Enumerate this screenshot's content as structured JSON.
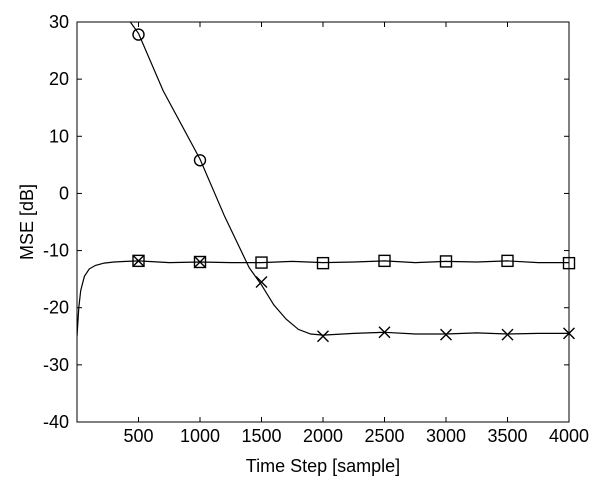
{
  "chart_data": {
    "type": "line",
    "title": "",
    "xlabel": "Time Step [sample]",
    "ylabel": "MSE [dB]",
    "xlim": [
      0,
      4000
    ],
    "ylim": [
      -40,
      30
    ],
    "xticks": [
      500,
      1000,
      1500,
      2000,
      2500,
      3000,
      3500,
      4000
    ],
    "yticks": [
      -40,
      -30,
      -20,
      -10,
      0,
      10,
      20,
      30
    ],
    "grid": false,
    "legend": "none",
    "series": [
      {
        "marker": "circle",
        "line_x": [
          400,
          500,
          700,
          1000,
          1200,
          1400,
          1500,
          1600,
          1700,
          1800,
          1900,
          2000,
          2250,
          2500,
          2750,
          3000,
          3250,
          3500,
          3750,
          4000
        ],
        "line_y": [
          31,
          28,
          18,
          6,
          -4,
          -13,
          -16,
          -19.5,
          -22,
          -23.8,
          -24.6,
          -24.8,
          -24.5,
          -24.3,
          -24.6,
          -24.6,
          -24.4,
          -24.6,
          -24.5,
          -24.5
        ],
        "marker_x": [
          500,
          1000
        ],
        "marker_y": [
          27.8,
          5.8
        ]
      },
      {
        "marker": "x",
        "marker_x": [
          500,
          1000,
          1500,
          2000,
          2500,
          3000,
          3500,
          4000
        ],
        "marker_y": [
          -11.8,
          -12,
          -15.5,
          -25,
          -24.3,
          -24.7,
          -24.7,
          -24.5
        ]
      },
      {
        "marker": "square",
        "line_x": [
          0,
          15,
          30,
          60,
          100,
          150,
          220,
          300,
          400,
          500,
          750,
          1000,
          1250,
          1500,
          1750,
          2000,
          2250,
          2500,
          2750,
          3000,
          3250,
          3500,
          3750,
          4000
        ],
        "line_y": [
          -25,
          -20,
          -17,
          -14.5,
          -13.2,
          -12.6,
          -12.2,
          -12,
          -11.9,
          -11.8,
          -12.1,
          -12,
          -12.1,
          -12.1,
          -11.9,
          -12.1,
          -12,
          -11.8,
          -12.1,
          -11.9,
          -12,
          -11.8,
          -12.1,
          -12.1
        ],
        "marker_x": [
          500,
          1000,
          1500,
          2000,
          2500,
          3000,
          3500,
          4000
        ],
        "marker_y": [
          -11.8,
          -12,
          -12.1,
          -12.2,
          -11.8,
          -11.9,
          -11.8,
          -12.2
        ]
      }
    ]
  }
}
